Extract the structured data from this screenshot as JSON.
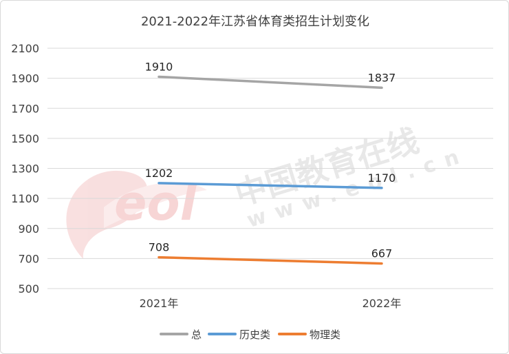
{
  "chart_data": {
    "type": "line",
    "title": "2021-2022年江苏省体育类招生计划变化",
    "categories": [
      "2021年",
      "2022年"
    ],
    "ylim": [
      500,
      2100
    ],
    "yticks": [
      500,
      700,
      900,
      1100,
      1300,
      1500,
      1700,
      1900,
      2100
    ],
    "grid": true,
    "legend_position": "bottom",
    "series": [
      {
        "name": "总",
        "values": [
          1910,
          1837
        ],
        "color": "#a5a5a5"
      },
      {
        "name": "历史类",
        "values": [
          1202,
          1170
        ],
        "color": "#5b9bd5"
      },
      {
        "name": "物理类",
        "values": [
          708,
          667
        ],
        "color": "#ed7d31"
      }
    ]
  },
  "watermark": {
    "text": "中国教育在线",
    "url": "www.eol.cn",
    "logo": "eol"
  }
}
